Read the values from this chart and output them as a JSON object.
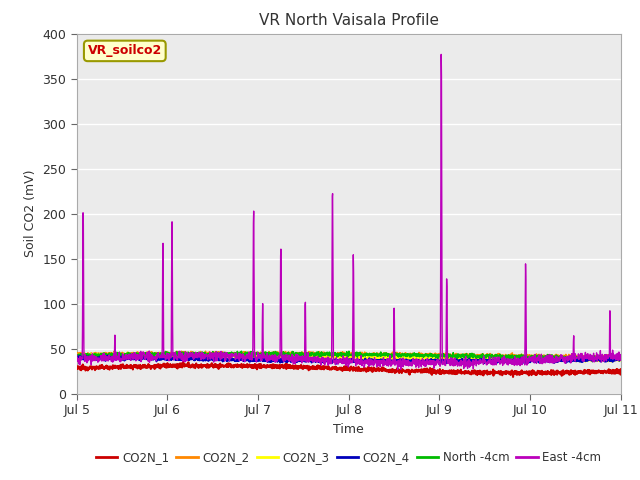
{
  "title": "VR North Vaisala Profile",
  "xlabel": "Time",
  "ylabel": "Soil CO2 (mV)",
  "ylim": [
    0,
    400
  ],
  "xlim": [
    0,
    6
  ],
  "xtick_labels": [
    "Jul 5",
    "Jul 6",
    "Jul 7",
    "Jul 8",
    "Jul 9",
    "Jul 10",
    "Jul 11"
  ],
  "annotation_text": "VR_soilco2",
  "annotation_bg": "#ffffcc",
  "annotation_fg": "#cc0000",
  "annotation_border": "#999900",
  "bg_color": "#ebebeb",
  "series_colors": {
    "CO2N_1": "#cc0000",
    "CO2N_2": "#ff8800",
    "CO2N_3": "#ffff00",
    "CO2N_4": "#0000bb",
    "North_4cm": "#00bb00",
    "East_4cm": "#bb00bb"
  },
  "legend_labels": [
    "CO2N_1",
    "CO2N_2",
    "CO2N_3",
    "CO2N_4",
    "North -4cm",
    "East -4cm"
  ],
  "spike_times": [
    0.07,
    0.42,
    0.95,
    1.05,
    1.95,
    2.05,
    2.25,
    2.52,
    2.82,
    3.05,
    3.5,
    4.02,
    4.08,
    4.95,
    5.48,
    5.88
  ],
  "spike_heights": [
    205,
    65,
    175,
    192,
    207,
    100,
    165,
    105,
    232,
    155,
    95,
    385,
    130,
    145,
    65,
    92
  ]
}
